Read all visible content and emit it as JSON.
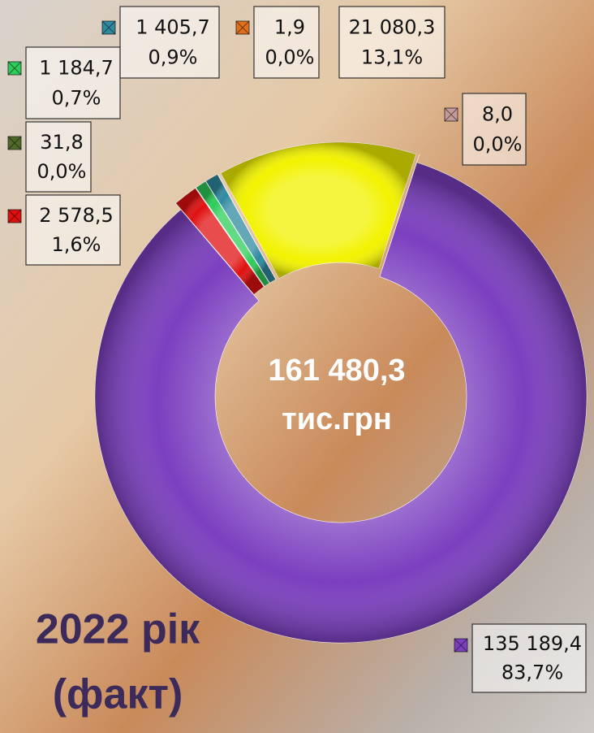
{
  "chart_data": {
    "type": "donut",
    "title": "2022 рік",
    "subtitle": "(факт)",
    "center_text": [
      "161 480,3",
      "тис.грн"
    ],
    "values": [
      135189.4,
      2578.5,
      31.8,
      1184.7,
      1405.7,
      1.9,
      21080.3,
      8.0
    ],
    "value_labels": [
      "135 189,4",
      "2 578,5",
      "31,8",
      "1 184,7",
      "1 405,7",
      "1,9",
      "21 080,3",
      "8,0"
    ],
    "percents": [
      83.7,
      1.6,
      0.0,
      0.7,
      0.9,
      0.0,
      13.1,
      0.0
    ],
    "percent_labels": [
      "83,7%",
      "1,6%",
      "0,0%",
      "0,7%",
      "0,9%",
      "0,0%",
      "13,1%",
      "0,0%"
    ],
    "colors": [
      "#7b3fbf",
      "#e01010",
      "#4f6a2a",
      "#2ecc5a",
      "#2f8aa0",
      "#e0701a",
      "#f2f200",
      "#c49a9a"
    ]
  }
}
